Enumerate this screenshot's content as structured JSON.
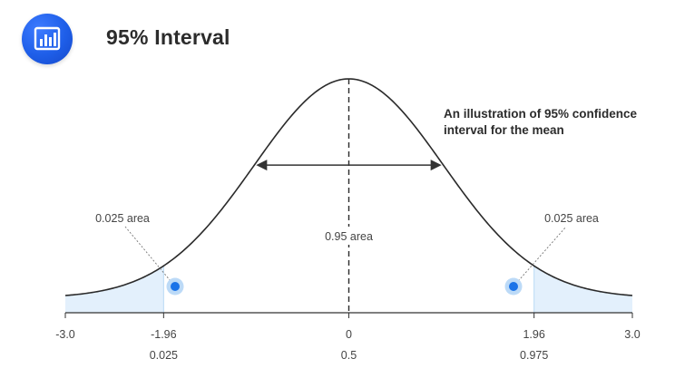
{
  "header": {
    "title": "95% Interval",
    "badge_icon": "bar-chart-icon"
  },
  "annotation": {
    "line1": "An illustration of 95% confidence",
    "line2": "interval for the mean"
  },
  "colors": {
    "badge": "#1e5ee8",
    "curve": "#2a2a2a",
    "tail_fill": "#e3f0fc",
    "tail_edge": "#b9d9f5",
    "marker": "#1a73e8",
    "marker_halo": "#bcdaf7",
    "text": "#444444"
  },
  "chart_data": {
    "type": "area",
    "distribution": "standard normal",
    "xlim": [
      -3.0,
      3.0
    ],
    "ticks": [
      {
        "x": -3.0,
        "label": "-3.0",
        "sub": ""
      },
      {
        "x": -1.96,
        "label": "-1.96",
        "sub": "0.025"
      },
      {
        "x": 0,
        "label": "0",
        "sub": "0.5"
      },
      {
        "x": 1.96,
        "label": "1.96",
        "sub": "0.975"
      },
      {
        "x": 3.0,
        "label": "3.0",
        "sub": ""
      }
    ],
    "shaded_regions": [
      {
        "from": -3.0,
        "to": -1.96,
        "label": "0.025 area"
      },
      {
        "from": 1.96,
        "to": 3.0,
        "label": "0.025 area"
      }
    ],
    "center_region": {
      "from": -1.96,
      "to": 1.96,
      "label": "0.95 area"
    },
    "mean_line": 0
  }
}
